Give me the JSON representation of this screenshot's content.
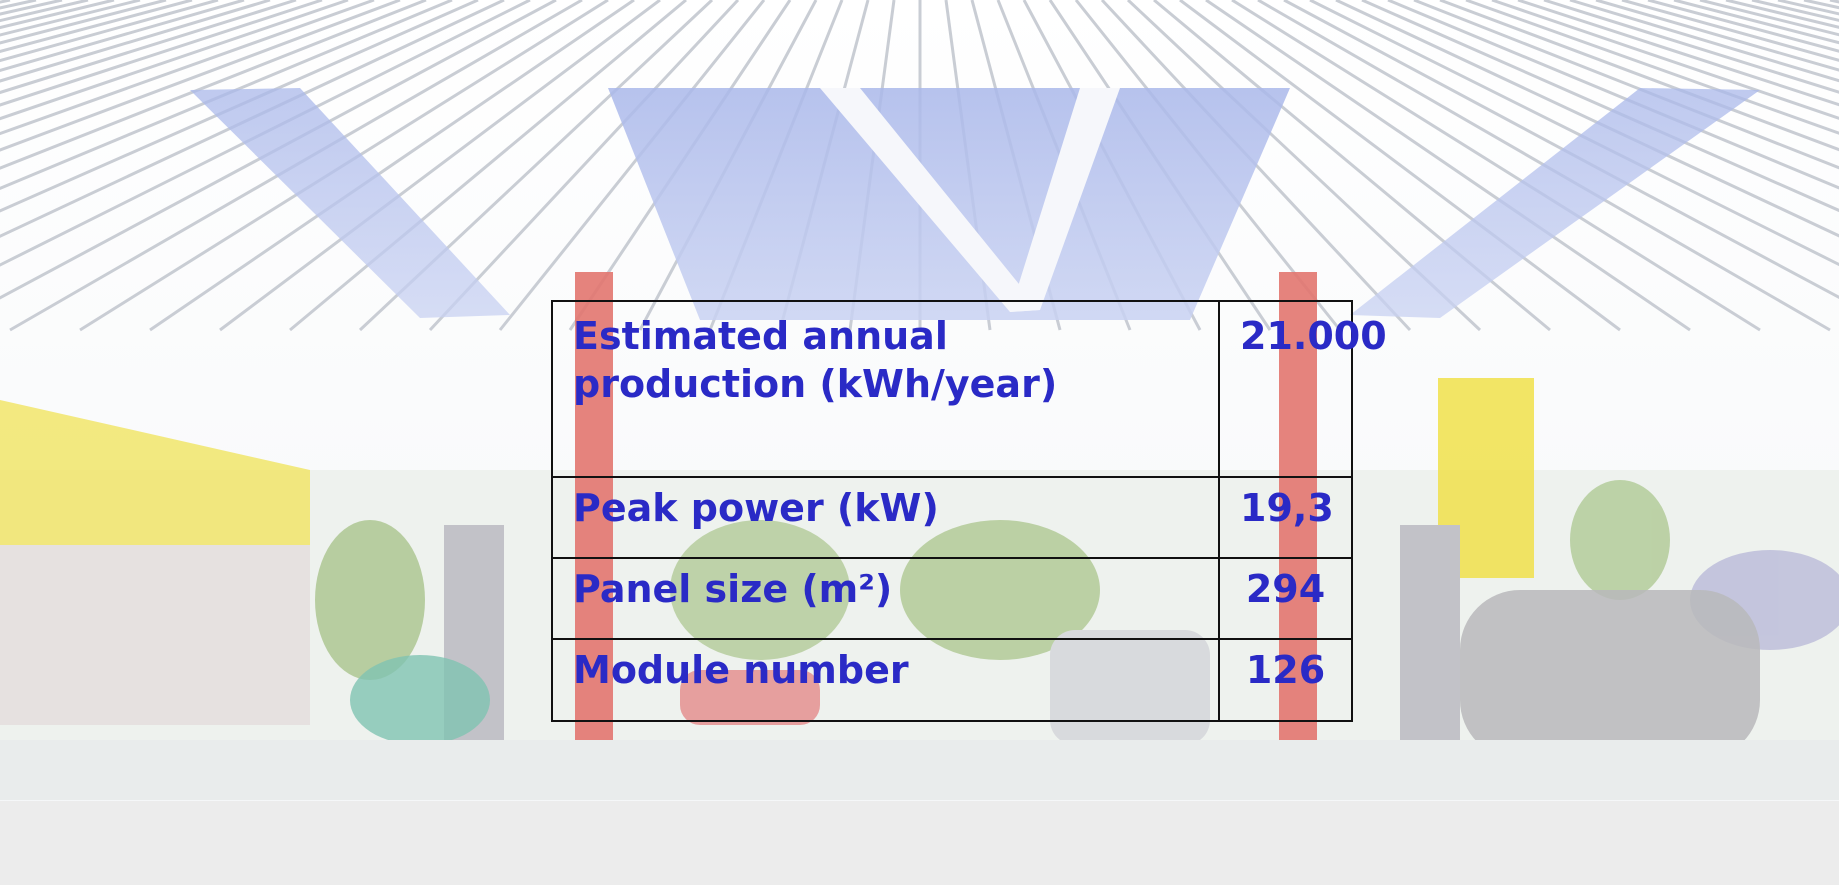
{
  "table": {
    "rows": [
      [
        "Estimated annual production (kWh/year)",
        "21.000"
      ],
      [
        "Peak power (kW)",
        "19,3"
      ],
      [
        "Panel size (m²)",
        "294"
      ],
      [
        "Module number",
        "126"
      ]
    ]
  }
}
